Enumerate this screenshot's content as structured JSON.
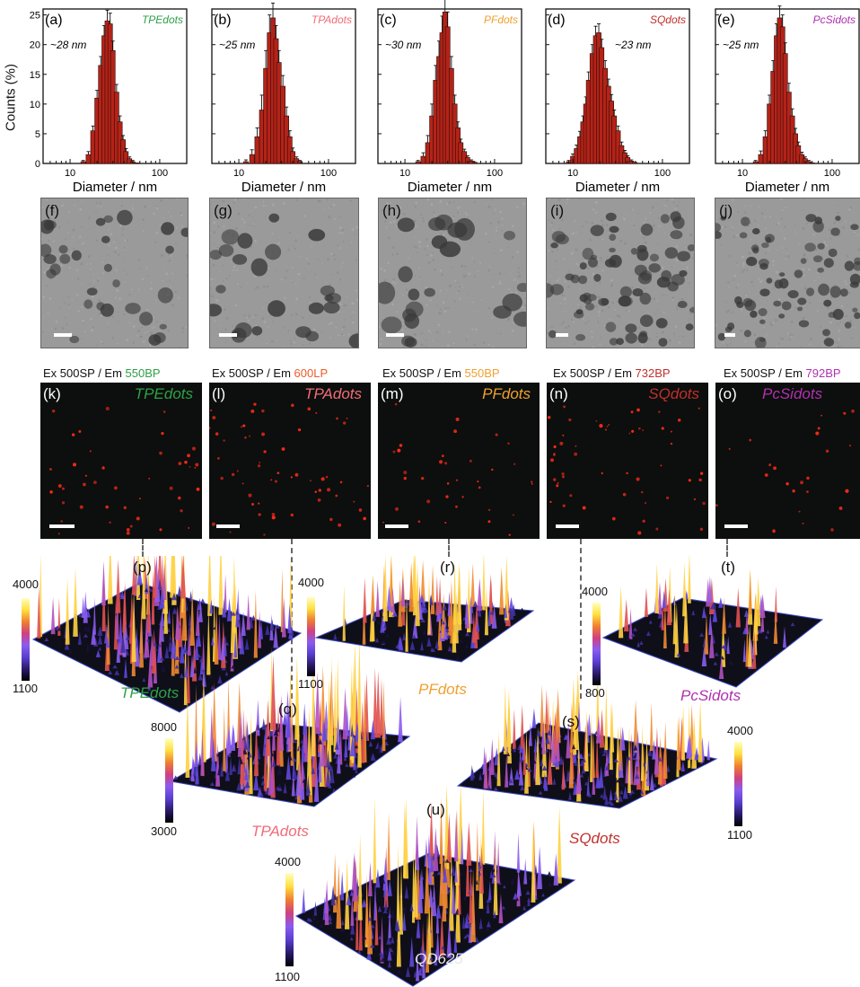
{
  "chart_data": [
    {
      "type": "bar",
      "id": "a",
      "label": "(a)",
      "name": "TPEdots",
      "name_color": "#2ea046",
      "size": "~28 nm",
      "ylabel": "Counts (%)",
      "xlabel": "Diameter / nm",
      "xscale": "log",
      "xlim": [
        5,
        200
      ],
      "ylim": [
        0,
        26
      ],
      "yticks": [
        "0",
        "5",
        "10",
        "15",
        "20",
        "25"
      ],
      "xticks": [
        "10",
        "100"
      ],
      "x": [
        14,
        16,
        18,
        20,
        22,
        24,
        26,
        28,
        30,
        33,
        36,
        39,
        42,
        46,
        50,
        55
      ],
      "values": [
        0.3,
        1.5,
        5.5,
        11,
        16.5,
        21.5,
        24,
        23.5,
        19,
        12,
        7,
        4,
        2,
        0.8,
        0.3,
        0.1
      ],
      "errors": [
        0.2,
        0.5,
        0.8,
        1.3,
        1.5,
        1.7,
        1.8,
        1.8,
        1.6,
        1.3,
        1,
        0.7,
        0.5,
        0.3,
        0.2,
        0.1
      ]
    },
    {
      "type": "bar",
      "id": "b",
      "label": "(b)",
      "name": "TPAdots",
      "name_color": "#f06c78",
      "size": "~25 nm",
      "ylabel": "",
      "xlabel": "Diameter / nm",
      "xscale": "log",
      "xlim": [
        5,
        200
      ],
      "ylim": [
        0,
        26
      ],
      "yticks": [],
      "xticks": [
        "10",
        "100"
      ],
      "x": [
        12,
        14,
        16,
        18,
        20,
        22,
        24,
        26,
        28,
        31,
        34,
        37,
        40,
        44,
        48
      ],
      "values": [
        0.3,
        1.5,
        4.5,
        9,
        16,
        22,
        24.5,
        21,
        17,
        13,
        8,
        4.5,
        2,
        0.8,
        0.3
      ],
      "errors": [
        0.3,
        0.8,
        1.5,
        2.5,
        3,
        3,
        2.5,
        2.2,
        2,
        1.8,
        1.5,
        1,
        0.6,
        0.3,
        0.2
      ]
    },
    {
      "type": "bar",
      "id": "c",
      "label": "(c)",
      "name": "PFdots",
      "name_color": "#f0a030",
      "size": "~30 nm",
      "ylabel": "",
      "xlabel": "Diameter / nm",
      "xscale": "log",
      "xlim": [
        5,
        200
      ],
      "ylim": [
        0,
        26
      ],
      "yticks": [],
      "xticks": [
        "10",
        "100"
      ],
      "x": [
        14,
        16,
        18,
        20,
        22,
        24,
        26,
        28,
        30,
        33,
        36,
        39,
        42,
        46,
        50,
        55,
        60
      ],
      "values": [
        0.3,
        1.2,
        3.5,
        8,
        14,
        18,
        22,
        25.5,
        23,
        16,
        10,
        6,
        3.5,
        2,
        1,
        0.4,
        0.2
      ],
      "errors": [
        0.2,
        0.6,
        1.2,
        2,
        2.5,
        2.6,
        2.8,
        2.8,
        2.5,
        2,
        1.5,
        1,
        0.6,
        0.4,
        0.3,
        0.2,
        0.1
      ]
    },
    {
      "type": "bar",
      "id": "d",
      "label": "(d)",
      "name": "SQdots",
      "name_color": "#c0302c",
      "size": "~23 nm",
      "ylabel": "",
      "xlabel": "Diameter / nm",
      "xscale": "log",
      "xlim": [
        5,
        200
      ],
      "ylim": [
        0,
        26
      ],
      "yticks": [],
      "xticks": [
        "10",
        "100"
      ],
      "x": [
        9,
        10,
        11,
        12,
        13,
        14,
        15,
        16.5,
        18,
        19.5,
        21,
        23,
        25,
        27,
        29,
        32,
        35,
        38,
        41,
        45,
        49
      ],
      "values": [
        0.3,
        1.2,
        2.5,
        4.5,
        7,
        10,
        14,
        18.5,
        21.5,
        22,
        19.5,
        16,
        13,
        10.5,
        8,
        5.5,
        3,
        1.8,
        1,
        0.4,
        0.2
      ],
      "errors": [
        0.2,
        0.4,
        0.6,
        0.9,
        1,
        1.2,
        1.4,
        1.5,
        1.6,
        1.5,
        1.4,
        1.3,
        1.2,
        1.1,
        1,
        0.8,
        0.6,
        0.4,
        0.3,
        0.2,
        0.1
      ]
    },
    {
      "type": "bar",
      "id": "e",
      "label": "(e)",
      "name": "PcSidots",
      "name_color": "#b030b0",
      "size": "~25 nm",
      "ylabel": "",
      "xlabel": "Diameter / nm",
      "xscale": "log",
      "xlim": [
        5,
        200
      ],
      "ylim": [
        0,
        26
      ],
      "yticks": [],
      "xticks": [
        "10",
        "100"
      ],
      "x": [
        14,
        16,
        18,
        20,
        22,
        24,
        26,
        28,
        30,
        33,
        36,
        39,
        42,
        46,
        50,
        55,
        60
      ],
      "values": [
        0.3,
        1.5,
        4.5,
        10,
        15.5,
        21.5,
        24.5,
        23,
        18.5,
        12,
        8,
        5,
        3,
        1.5,
        0.8,
        0.3,
        0.1
      ],
      "errors": [
        0.2,
        0.6,
        1,
        1.5,
        1.8,
        2,
        2,
        2,
        1.8,
        1.5,
        1.2,
        0.9,
        0.6,
        0.4,
        0.3,
        0.2,
        0.1
      ]
    }
  ],
  "tem": [
    {
      "label": "(f)"
    },
    {
      "label": "(g)"
    },
    {
      "label": "(h)"
    },
    {
      "label": "(i)"
    },
    {
      "label": "(j)"
    }
  ],
  "fluor": [
    {
      "label": "(k)",
      "name": "TPEdots",
      "name_color": "#2ea046",
      "ex": "Ex 500SP / Em ",
      "em": "550BP",
      "em_color": "#2ea046"
    },
    {
      "label": "(l)",
      "name": "TPAdots",
      "name_color": "#f06c78",
      "ex": "Ex 500SP / Em ",
      "em": "600LP",
      "em_color": "#f05a28"
    },
    {
      "label": "(m)",
      "name": "PFdots",
      "name_color": "#f0a030",
      "ex": "Ex 500SP / Em ",
      "em": "550BP",
      "em_color": "#f0a030"
    },
    {
      "label": "(n)",
      "name": "SQdots",
      "name_color": "#c0302c",
      "ex": "Ex 500SP / Em ",
      "em": "732BP",
      "em_color": "#c0302c"
    },
    {
      "label": "(o)",
      "name": "PcSidots",
      "name_color": "#b030b0",
      "ex": "Ex 500SP / Em ",
      "em": "792BP",
      "em_color": "#b030b0"
    }
  ],
  "surfaces": [
    {
      "label": "(p)",
      "name": "TPEdots",
      "name_color": "#2ea046",
      "cmax": "4000",
      "cmin": "1100"
    },
    {
      "label": "(q)",
      "name": "TPAdots",
      "name_color": "#f06c78",
      "cmax": "8000",
      "cmin": "3000"
    },
    {
      "label": "(r)",
      "name": "PFdots",
      "name_color": "#f0a030",
      "cmax": "4000",
      "cmin": "1100"
    },
    {
      "label": "(s)",
      "name": "SQdots",
      "name_color": "#c0302c",
      "cmax": "4000",
      "cmin": "1100"
    },
    {
      "label": "(t)",
      "name": "PcSidots",
      "name_color": "#b030b0",
      "cmax": "4000",
      "cmin": "800"
    },
    {
      "label": "(u)",
      "name": "QD625",
      "name_color": "#e8e8e8",
      "cmax": "4000",
      "cmin": "1100"
    }
  ],
  "colors": {
    "bar": "#b42318",
    "colormap": [
      "#000000",
      "#2a1a6a",
      "#5a3fd0",
      "#8a5cf0",
      "#d04080",
      "#f08030",
      "#ffe040",
      "#ffffc0"
    ]
  }
}
